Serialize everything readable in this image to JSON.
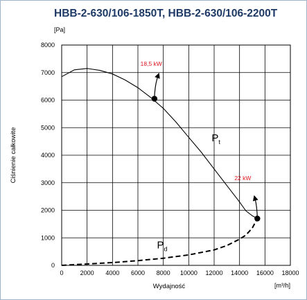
{
  "chart_data": {
    "type": "line",
    "title": "HBB-2-630/106-1850T, HBB-2-630/106-2200T",
    "ylabel": "Ciśnienie całkowite",
    "yunit": "[Pa]",
    "xlabel": "Wydajność",
    "xunit": "[m³/h]",
    "xlim": [
      0,
      18000
    ],
    "ylim": [
      0,
      8000
    ],
    "xticks": [
      "0",
      "2000",
      "4000",
      "6000",
      "8000",
      "10000",
      "12000",
      "14000",
      "16000",
      "18000"
    ],
    "yticks": [
      "0",
      "1000",
      "2000",
      "3000",
      "4000",
      "5000",
      "6000",
      "7000",
      "8000"
    ],
    "grid": true,
    "series": [
      {
        "name": "Pt",
        "name_main": "P",
        "name_sub": "t",
        "style": "solid",
        "color": "#000000",
        "x": [
          0,
          1000,
          2000,
          3000,
          4000,
          5000,
          6000,
          7000,
          8000,
          9000,
          10000,
          11000,
          12000,
          13000,
          14000,
          14500,
          15000,
          15400
        ],
        "y": [
          6850,
          7100,
          7150,
          7080,
          6950,
          6730,
          6450,
          6100,
          5700,
          5200,
          4650,
          4100,
          3500,
          2900,
          2300,
          1980,
          1800,
          1700
        ]
      },
      {
        "name": "Pd",
        "name_main": "P",
        "name_sub": "d",
        "style": "dashed",
        "color": "#000000",
        "x": [
          0,
          2000,
          4000,
          6000,
          8000,
          10000,
          12000,
          13000,
          14000,
          14500,
          15000,
          15400
        ],
        "y": [
          0,
          50,
          100,
          170,
          260,
          380,
          560,
          720,
          950,
          1100,
          1350,
          1700
        ]
      }
    ],
    "points": [
      {
        "label": "18,5 kW",
        "x": 7300,
        "y": 6050
      },
      {
        "label": "22 kW",
        "x": 15400,
        "y": 1700
      }
    ],
    "series_label_pos": [
      {
        "x": 11800,
        "y": 4500
      },
      {
        "x": 7500,
        "y": 620
      }
    ],
    "point_label_pos": [
      {
        "x": 6200,
        "y": 7250,
        "arrow_to": {
          "x": 7600,
          "y": 6900
        }
      },
      {
        "x": 13600,
        "y": 3100,
        "arrow_to": {
          "x": 15200,
          "y": 2450
        }
      }
    ]
  }
}
